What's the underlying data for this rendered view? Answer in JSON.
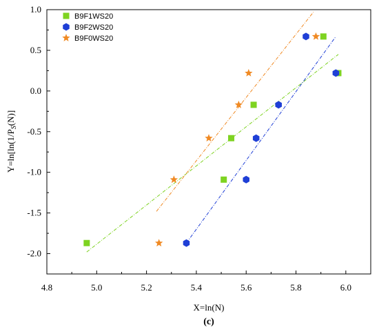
{
  "chart_data": {
    "type": "scatter",
    "xlabel": "X=ln(N)",
    "ylabel_main": "Y=ln[ln(1/P",
    "ylabel_sub": "S",
    "ylabel_end": "(N)]",
    "caption": "(c)",
    "xlim": [
      4.8,
      6.1
    ],
    "ylim": [
      -2.25,
      1.0
    ],
    "x_ticks": [
      4.8,
      5.0,
      5.2,
      5.4,
      5.6,
      5.8,
      6.0
    ],
    "x_tick_labels": [
      "4.8",
      "5.0",
      "5.2",
      "5.4",
      "5.6",
      "5.8",
      "6.0"
    ],
    "y_ticks": [
      -2.0,
      -1.5,
      -1.0,
      -0.5,
      0.0,
      0.5,
      1.0
    ],
    "y_tick_labels": [
      "-2.0",
      "-1.5",
      "-1.0",
      "-0.5",
      "0.0",
      "0.5",
      "1.0"
    ],
    "grid": false,
    "legend_position": "top-left",
    "series": [
      {
        "name": "B9F1WS20",
        "marker": "square",
        "color": "#7ed321",
        "x": [
          4.96,
          5.51,
          5.54,
          5.63,
          5.91,
          5.97
        ],
        "y": [
          -1.87,
          -1.09,
          -0.58,
          -0.17,
          0.67,
          0.22
        ],
        "fit": {
          "x": [
            4.96,
            5.97
          ],
          "y": [
            -1.98,
            0.45
          ]
        }
      },
      {
        "name": "B9F2WS20",
        "marker": "hexagon",
        "color": "#1f3fd6",
        "x": [
          5.36,
          5.6,
          5.64,
          5.73,
          5.84,
          5.96
        ],
        "y": [
          -1.87,
          -1.09,
          -0.58,
          -0.17,
          0.67,
          0.22
        ],
        "fit": {
          "x": [
            5.36,
            5.96
          ],
          "y": [
            -1.87,
            0.67
          ]
        }
      },
      {
        "name": "B9F0WS20",
        "marker": "star",
        "color": "#f08a24",
        "x": [
          5.25,
          5.31,
          5.45,
          5.57,
          5.61,
          5.88
        ],
        "y": [
          -1.87,
          -1.09,
          -0.58,
          -0.17,
          0.22,
          0.67
        ],
        "fit": {
          "x": [
            5.24,
            5.87
          ],
          "y": [
            -1.48,
            0.97
          ]
        }
      }
    ]
  }
}
